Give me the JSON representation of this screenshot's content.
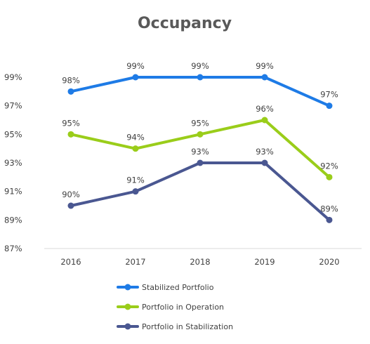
{
  "chart_data": {
    "type": "line",
    "title": "Occupancy",
    "xlabel": "",
    "ylabel": "",
    "x": [
      "2016",
      "2017",
      "2018",
      "2019",
      "2020"
    ],
    "ylim": [
      87,
      99
    ],
    "yticks": [
      87,
      89,
      91,
      93,
      95,
      97,
      99
    ],
    "ytick_labels": [
      "87%",
      "89%",
      "91%",
      "93%",
      "95%",
      "97%",
      "99%"
    ],
    "grid": false,
    "legend_position": "bottom",
    "series": [
      {
        "name": "Stabilized Portfolio",
        "color": "#1e7be6",
        "values": [
          98,
          99,
          99,
          99,
          97
        ],
        "labels": [
          "98%",
          "99%",
          "99%",
          "99%",
          "97%"
        ]
      },
      {
        "name": "Portfolio in Operation",
        "color": "#9acd1a",
        "values": [
          95,
          94,
          95,
          96,
          92
        ],
        "labels": [
          "95%",
          "94%",
          "95%",
          "96%",
          "92%"
        ]
      },
      {
        "name": "Portfolio in Stabilization",
        "color": "#4a5791",
        "values": [
          90,
          91,
          93,
          93,
          89
        ],
        "labels": [
          "90%",
          "91%",
          "93%",
          "93%",
          "89%"
        ]
      }
    ]
  }
}
